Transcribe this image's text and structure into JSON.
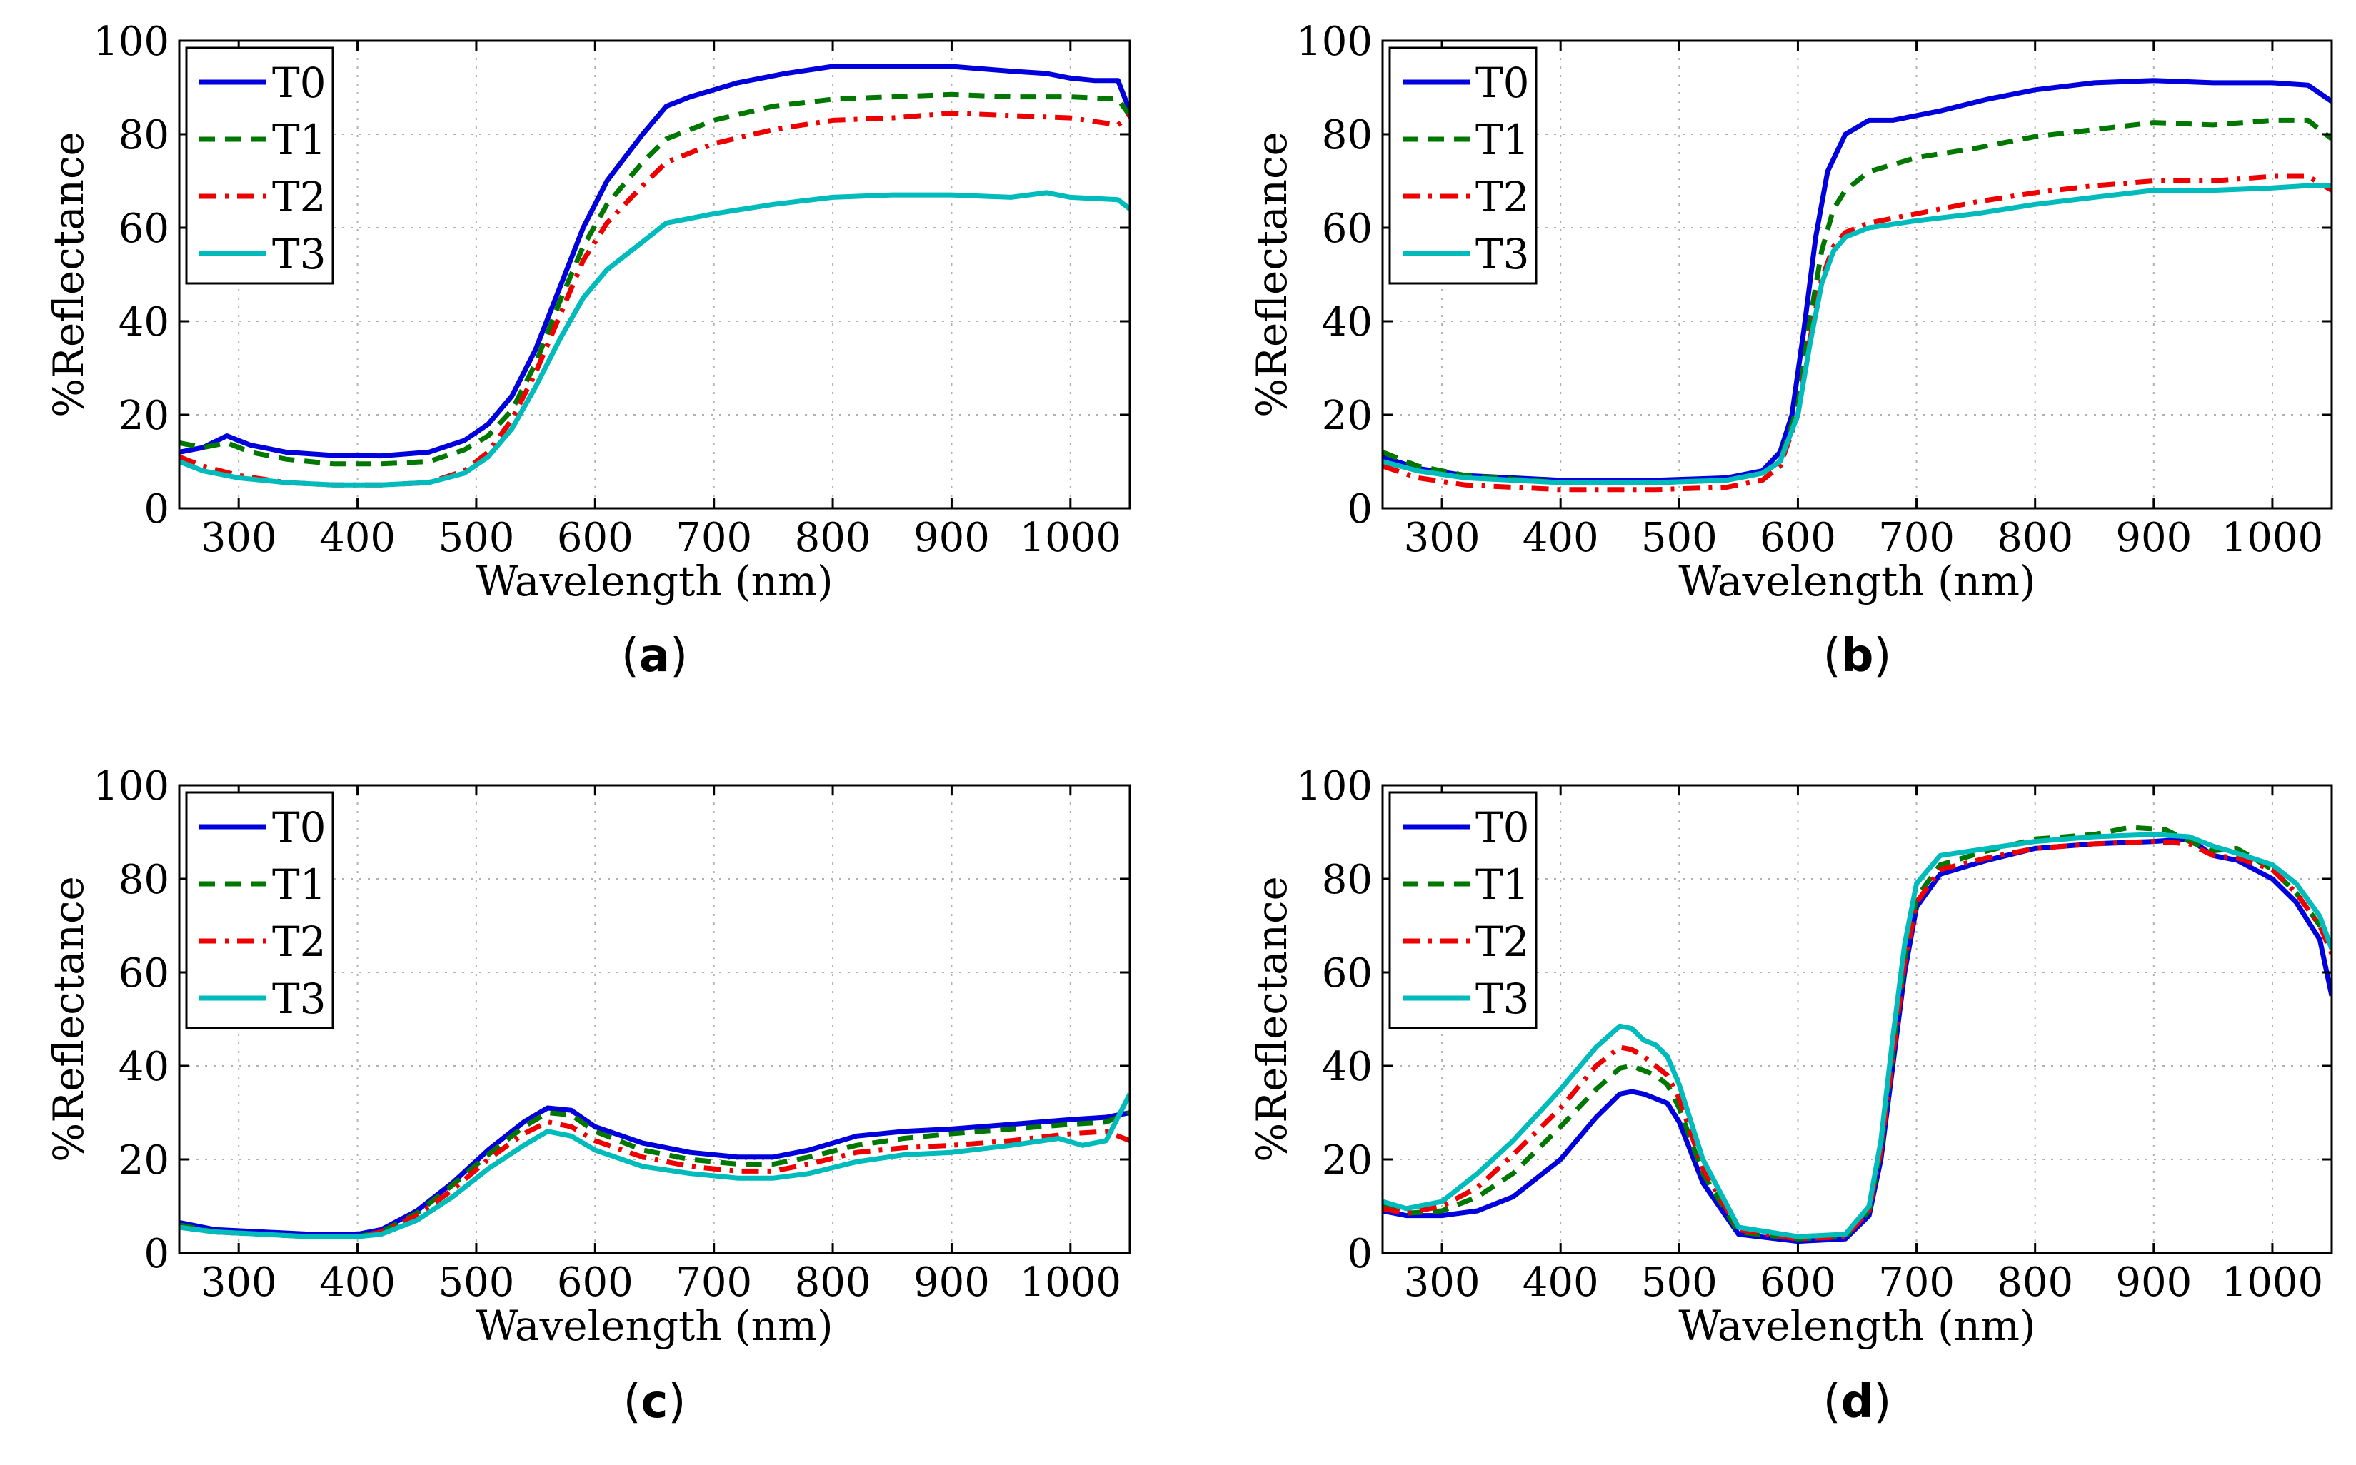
{
  "chart_data": [
    {
      "id": "a",
      "type": "line",
      "panel_label": "a",
      "title": "",
      "xlabel": "Wavelength (nm)",
      "ylabel": "%Reflectance",
      "xlim": [
        250,
        1050
      ],
      "ylim": [
        0,
        100
      ],
      "xticks": [
        300,
        400,
        500,
        600,
        700,
        800,
        900,
        1000
      ],
      "yticks": [
        0,
        20,
        40,
        60,
        80,
        100
      ],
      "grid": true,
      "legend_position": "top-left",
      "series": [
        {
          "name": "T0",
          "color": "#0000dd",
          "style": "solid",
          "x": [
            250,
            270,
            290,
            310,
            340,
            380,
            420,
            460,
            490,
            510,
            530,
            550,
            570,
            590,
            610,
            640,
            660,
            680,
            720,
            760,
            800,
            850,
            900,
            950,
            980,
            1000,
            1020,
            1040,
            1050
          ],
          "y": [
            12,
            13,
            15.5,
            13.5,
            12,
            11.3,
            11.2,
            12,
            14.5,
            18,
            24,
            34,
            47,
            60,
            70,
            80,
            86,
            88,
            91,
            93,
            94.5,
            94.5,
            94.5,
            93.5,
            93,
            92,
            91.5,
            91.5,
            85
          ]
        },
        {
          "name": "T1",
          "color": "#007700",
          "style": "dashed",
          "x": [
            250,
            270,
            290,
            310,
            340,
            380,
            420,
            460,
            490,
            510,
            530,
            550,
            570,
            590,
            610,
            640,
            660,
            700,
            750,
            800,
            850,
            900,
            950,
            1000,
            1040,
            1050
          ],
          "y": [
            14,
            13,
            14,
            12,
            10.5,
            9.5,
            9.5,
            10,
            12.5,
            15.5,
            21,
            31,
            44,
            56,
            65,
            74,
            79,
            83,
            86,
            87.5,
            88,
            88.5,
            88,
            88,
            87.5,
            84
          ]
        },
        {
          "name": "T2",
          "color": "#ee0000",
          "style": "dashdot",
          "x": [
            250,
            270,
            300,
            340,
            380,
            420,
            460,
            490,
            510,
            530,
            550,
            570,
            590,
            610,
            640,
            660,
            700,
            750,
            800,
            850,
            900,
            950,
            1000,
            1040,
            1050
          ],
          "y": [
            11,
            9,
            7,
            5.5,
            5,
            5,
            5.5,
            8,
            12,
            19,
            29,
            41,
            53,
            61,
            69,
            74,
            78,
            81,
            83,
            83.5,
            84.5,
            84,
            83.5,
            82,
            84
          ]
        },
        {
          "name": "T3",
          "color": "#00bbbb",
          "style": "solid",
          "x": [
            250,
            270,
            300,
            340,
            380,
            420,
            460,
            490,
            510,
            530,
            550,
            570,
            590,
            610,
            640,
            660,
            700,
            750,
            800,
            850,
            900,
            950,
            980,
            1000,
            1040,
            1050
          ],
          "y": [
            10,
            8,
            6.5,
            5.5,
            5,
            5,
            5.5,
            7.5,
            11,
            17,
            26,
            36,
            45,
            51,
            57,
            61,
            63,
            65,
            66.5,
            67,
            67,
            66.5,
            67.5,
            66.5,
            66,
            64
          ]
        }
      ]
    },
    {
      "id": "b",
      "type": "line",
      "panel_label": "b",
      "title": "",
      "xlabel": "Wavelength (nm)",
      "ylabel": "%Reflectance",
      "xlim": [
        250,
        1050
      ],
      "ylim": [
        0,
        100
      ],
      "xticks": [
        300,
        400,
        500,
        600,
        700,
        800,
        900,
        1000
      ],
      "yticks": [
        0,
        20,
        40,
        60,
        80,
        100
      ],
      "grid": true,
      "legend_position": "top-left",
      "series": [
        {
          "name": "T0",
          "color": "#0000dd",
          "style": "solid",
          "x": [
            250,
            280,
            320,
            400,
            480,
            540,
            570,
            585,
            595,
            605,
            615,
            625,
            640,
            660,
            680,
            720,
            760,
            800,
            850,
            900,
            950,
            1000,
            1030,
            1050
          ],
          "y": [
            11,
            8.5,
            7,
            6,
            6,
            6.5,
            8,
            12,
            20,
            38,
            58,
            72,
            80,
            83,
            83,
            85,
            87.5,
            89.5,
            91,
            91.5,
            91,
            91,
            90.5,
            87
          ]
        },
        {
          "name": "T1",
          "color": "#007700",
          "style": "dashed",
          "x": [
            250,
            280,
            320,
            400,
            480,
            540,
            570,
            585,
            600,
            610,
            620,
            630,
            640,
            660,
            700,
            750,
            800,
            850,
            900,
            950,
            1000,
            1030,
            1050
          ],
          "y": [
            12,
            9,
            7,
            5.5,
            5.5,
            6,
            7.5,
            10,
            22,
            40,
            55,
            64,
            68,
            72,
            75,
            77,
            79.5,
            81,
            82.5,
            82,
            83,
            83,
            79
          ]
        },
        {
          "name": "T2",
          "color": "#ee0000",
          "style": "dashdot",
          "x": [
            250,
            280,
            320,
            400,
            480,
            540,
            570,
            585,
            600,
            610,
            620,
            630,
            640,
            660,
            700,
            750,
            800,
            850,
            900,
            950,
            1000,
            1030,
            1050
          ],
          "y": [
            9,
            6.5,
            5,
            4,
            4,
            4.5,
            6,
            9,
            20,
            36,
            49,
            56,
            59,
            61,
            63,
            65.5,
            67.5,
            69,
            70,
            70,
            71,
            71,
            68
          ]
        },
        {
          "name": "T3",
          "color": "#00bbbb",
          "style": "solid",
          "x": [
            250,
            280,
            320,
            400,
            480,
            540,
            570,
            585,
            600,
            610,
            620,
            630,
            640,
            660,
            700,
            750,
            800,
            850,
            900,
            950,
            1000,
            1030,
            1050
          ],
          "y": [
            10,
            8,
            6.5,
            5.5,
            5.5,
            6,
            7.5,
            10,
            20,
            35,
            48,
            55,
            58,
            60,
            61.5,
            63,
            65,
            66.5,
            68,
            68,
            68.5,
            69,
            69
          ]
        }
      ]
    },
    {
      "id": "c",
      "type": "line",
      "panel_label": "c",
      "title": "",
      "xlabel": "Wavelength (nm)",
      "ylabel": "%Reflectance",
      "xlim": [
        250,
        1050
      ],
      "ylim": [
        0,
        100
      ],
      "xticks": [
        300,
        400,
        500,
        600,
        700,
        800,
        900,
        1000
      ],
      "yticks": [
        0,
        20,
        40,
        60,
        80,
        100
      ],
      "grid": true,
      "legend_position": "top-left",
      "series": [
        {
          "name": "T0",
          "color": "#0000dd",
          "style": "solid",
          "x": [
            250,
            280,
            320,
            360,
            400,
            420,
            450,
            480,
            510,
            540,
            560,
            580,
            600,
            640,
            680,
            720,
            750,
            780,
            820,
            860,
            900,
            950,
            1000,
            1030,
            1050
          ],
          "y": [
            6.5,
            5,
            4.5,
            4,
            4,
            5,
            9,
            15,
            22,
            28,
            31,
            30.5,
            27,
            23.5,
            21.5,
            20.5,
            20.5,
            22,
            25,
            26,
            26.5,
            27.5,
            28.5,
            29,
            30
          ]
        },
        {
          "name": "T1",
          "color": "#007700",
          "style": "dashed",
          "x": [
            250,
            280,
            320,
            360,
            400,
            420,
            450,
            480,
            510,
            540,
            560,
            580,
            600,
            640,
            680,
            720,
            750,
            780,
            820,
            860,
            900,
            950,
            1000,
            1030,
            1050
          ],
          "y": [
            6,
            4.5,
            4,
            3.5,
            3.5,
            4.5,
            8.5,
            14.5,
            21,
            27,
            30,
            29.5,
            26,
            22,
            20,
            19,
            19,
            20.5,
            23,
            24.5,
            25.5,
            26.5,
            27.5,
            28,
            30
          ]
        },
        {
          "name": "T2",
          "color": "#ee0000",
          "style": "dashdot",
          "x": [
            250,
            280,
            320,
            360,
            400,
            420,
            450,
            480,
            510,
            540,
            560,
            580,
            600,
            640,
            680,
            720,
            750,
            780,
            820,
            860,
            900,
            950,
            1000,
            1030,
            1050
          ],
          "y": [
            5.5,
            4.5,
            4,
            3.5,
            3.5,
            4.5,
            8,
            13.5,
            20,
            25.5,
            28,
            27,
            24,
            20.5,
            18.5,
            17.5,
            17.5,
            19,
            21.5,
            22.5,
            23,
            24,
            25.5,
            26,
            24
          ]
        },
        {
          "name": "T3",
          "color": "#00bbbb",
          "style": "solid",
          "x": [
            250,
            280,
            320,
            360,
            400,
            420,
            450,
            480,
            510,
            540,
            560,
            580,
            600,
            640,
            680,
            720,
            750,
            780,
            820,
            860,
            900,
            950,
            990,
            1010,
            1030,
            1050
          ],
          "y": [
            5.5,
            4.5,
            4,
            3.5,
            3.5,
            4,
            7,
            12,
            18,
            23,
            26,
            25,
            22,
            18.5,
            17,
            16,
            16,
            17,
            19.5,
            21,
            21.5,
            23,
            24.5,
            23,
            24,
            34
          ]
        }
      ]
    },
    {
      "id": "d",
      "type": "line",
      "panel_label": "d",
      "title": "",
      "xlabel": "Wavelength (nm)",
      "ylabel": "%Reflectance",
      "xlim": [
        250,
        1050
      ],
      "ylim": [
        0,
        100
      ],
      "xticks": [
        300,
        400,
        500,
        600,
        700,
        800,
        900,
        1000
      ],
      "yticks": [
        0,
        20,
        40,
        60,
        80,
        100
      ],
      "grid": true,
      "legend_position": "top-left",
      "series": [
        {
          "name": "T0",
          "color": "#0000dd",
          "style": "solid",
          "x": [
            250,
            270,
            300,
            330,
            360,
            400,
            430,
            450,
            460,
            470,
            480,
            490,
            500,
            520,
            550,
            600,
            640,
            660,
            670,
            680,
            690,
            700,
            720,
            760,
            800,
            850,
            900,
            930,
            950,
            970,
            1000,
            1020,
            1040,
            1050
          ],
          "y": [
            9,
            8,
            8,
            9,
            12,
            20,
            29,
            34,
            34.5,
            34,
            33,
            32,
            28,
            15,
            4,
            2.5,
            3,
            8,
            20,
            40,
            60,
            74,
            81,
            84,
            86.5,
            87.5,
            88,
            88.5,
            85,
            84,
            80,
            75,
            67,
            55
          ]
        },
        {
          "name": "T1",
          "color": "#007700",
          "style": "dashed",
          "x": [
            250,
            270,
            300,
            330,
            360,
            400,
            430,
            450,
            460,
            470,
            480,
            490,
            500,
            520,
            550,
            600,
            640,
            660,
            670,
            680,
            690,
            700,
            720,
            760,
            800,
            850,
            880,
            910,
            930,
            950,
            970,
            1000,
            1020,
            1040,
            1050
          ],
          "y": [
            10,
            8.5,
            9,
            12,
            17,
            27,
            35,
            39.5,
            40,
            39,
            38,
            36,
            31,
            17,
            4.5,
            3,
            3.5,
            9,
            22,
            43,
            63,
            76,
            83,
            86,
            88.5,
            89.5,
            91,
            90.5,
            88,
            86,
            86.5,
            82,
            77,
            70,
            66
          ]
        },
        {
          "name": "T2",
          "color": "#ee0000",
          "style": "dashdot",
          "x": [
            250,
            270,
            300,
            330,
            360,
            400,
            430,
            450,
            460,
            470,
            480,
            490,
            500,
            520,
            550,
            600,
            640,
            660,
            670,
            680,
            690,
            700,
            720,
            760,
            800,
            850,
            900,
            930,
            950,
            970,
            1000,
            1020,
            1040,
            1050
          ],
          "y": [
            9.5,
            8.5,
            10,
            14,
            21,
            31,
            40,
            44,
            43.5,
            42,
            40,
            38,
            33,
            18,
            5,
            3,
            3.5,
            9,
            22,
            42,
            62,
            75,
            82,
            84.5,
            86.5,
            87.5,
            88,
            87.5,
            85,
            84.5,
            82,
            77,
            70,
            64
          ]
        },
        {
          "name": "T3",
          "color": "#00bbbb",
          "style": "solid",
          "x": [
            250,
            270,
            300,
            330,
            360,
            400,
            430,
            450,
            460,
            470,
            480,
            490,
            500,
            520,
            550,
            600,
            640,
            660,
            670,
            680,
            690,
            700,
            720,
            760,
            800,
            850,
            900,
            930,
            950,
            970,
            1000,
            1020,
            1040,
            1050
          ],
          "y": [
            11,
            9.5,
            11,
            17,
            24,
            35,
            44,
            48.5,
            48,
            45.5,
            44.5,
            42,
            36,
            20,
            5.5,
            3.5,
            4,
            10,
            24,
            46,
            66,
            79,
            85,
            86.5,
            88,
            89,
            89.5,
            89,
            87,
            85.5,
            83,
            79,
            72,
            65
          ]
        }
      ]
    }
  ]
}
